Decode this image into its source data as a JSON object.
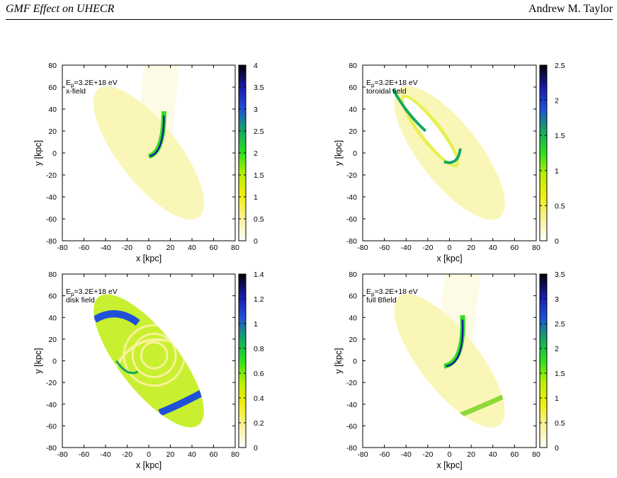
{
  "running_head": {
    "left": "GMF Effect on UHECR",
    "right": "Andrew M. Taylor"
  },
  "colorscale": [
    "#ffffff",
    "#f8f29a",
    "#f4ee10",
    "#b8f000",
    "#2ee020",
    "#14a860",
    "#2050d8",
    "#1a1aa8",
    "#000000"
  ],
  "chart_data": [
    {
      "type": "heatmap",
      "panel": "top-left",
      "annotation_main": "E",
      "annotation_sub": "p",
      "annotation_tail": "=3.2E+18 eV",
      "annotation_line2": "x-field",
      "xlabel": "x [kpc]",
      "ylabel": "y [kpc]",
      "xlim": [
        -80,
        80
      ],
      "ylim": [
        -80,
        80
      ],
      "x_ticks": [
        "-80",
        "-60",
        "-40",
        "-20",
        "0",
        "20",
        "40",
        "60",
        "80"
      ],
      "y_ticks": [
        "80",
        "60",
        "40",
        "20",
        "0",
        "-20",
        "-40",
        "-60",
        "-80"
      ],
      "colorbar_range": [
        0,
        4
      ],
      "colorbar_ticks": [
        "4",
        "3.5",
        "3",
        "2.5",
        "2",
        "1.5",
        "1",
        "0.5",
        "0"
      ]
    },
    {
      "type": "heatmap",
      "panel": "top-right",
      "annotation_main": "E",
      "annotation_sub": "p",
      "annotation_tail": "=3.2E+18 eV",
      "annotation_line2": "toroidal field",
      "xlabel": "x [kpc]",
      "ylabel": "y [kpc]",
      "xlim": [
        -80,
        80
      ],
      "ylim": [
        -80,
        80
      ],
      "x_ticks": [
        "-80",
        "-60",
        "-40",
        "-20",
        "0",
        "20",
        "40",
        "60",
        "80"
      ],
      "y_ticks": [
        "80",
        "60",
        "40",
        "20",
        "0",
        "-20",
        "-40",
        "-60",
        "-80"
      ],
      "colorbar_range": [
        0,
        2.5
      ],
      "colorbar_ticks": [
        "2.5",
        "2",
        "1.5",
        "1",
        "0.5",
        "0"
      ]
    },
    {
      "type": "heatmap",
      "panel": "bottom-left",
      "annotation_main": "E",
      "annotation_sub": "p",
      "annotation_tail": "=3.2E+18 eV",
      "annotation_line2": "disk field",
      "xlabel": "x [kpc]",
      "ylabel": "y [kpc]",
      "xlim": [
        -80,
        80
      ],
      "ylim": [
        -80,
        80
      ],
      "x_ticks": [
        "-80",
        "-60",
        "-40",
        "-20",
        "0",
        "20",
        "40",
        "60",
        "80"
      ],
      "y_ticks": [
        "80",
        "60",
        "40",
        "20",
        "0",
        "-20",
        "-40",
        "-60",
        "-80"
      ],
      "colorbar_range": [
        0,
        1.4
      ],
      "colorbar_ticks": [
        "1.4",
        "1.2",
        "1",
        "0.8",
        "0.6",
        "0.4",
        "0.2",
        "0"
      ]
    },
    {
      "type": "heatmap",
      "panel": "bottom-right",
      "annotation_main": "E",
      "annotation_sub": "p",
      "annotation_tail": "=3.2E+18 eV",
      "annotation_line2": "full Bfield",
      "xlabel": "x [kpc]",
      "ylabel": "y [kpc]",
      "xlim": [
        -80,
        80
      ],
      "ylim": [
        -80,
        80
      ],
      "x_ticks": [
        "-80",
        "-60",
        "-40",
        "-20",
        "0",
        "20",
        "40",
        "60",
        "80"
      ],
      "y_ticks": [
        "80",
        "60",
        "40",
        "20",
        "0",
        "-20",
        "-40",
        "-60",
        "-80"
      ],
      "colorbar_range": [
        0,
        3.5
      ],
      "colorbar_ticks": [
        "3.5",
        "3",
        "2.5",
        "2",
        "1.5",
        "1",
        "0.5",
        "0"
      ]
    }
  ]
}
